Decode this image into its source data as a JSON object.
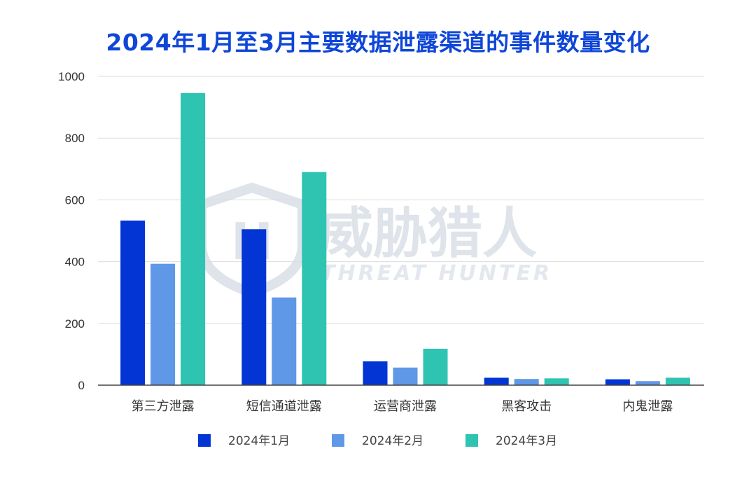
{
  "watermark": {
    "main": "威胁猎人",
    "sub": "THREAT HUNTER"
  },
  "chart_data": {
    "type": "bar",
    "title": "2024年1月至3月主要数据泄露渠道的事件数量变化",
    "categories": [
      "第三方泄露",
      "短信通道泄露",
      "运营商泄露",
      "黑客攻击",
      "内鬼泄露"
    ],
    "series": [
      {
        "name": "2024年1月",
        "color": "#0235d4",
        "values": [
          533,
          505,
          77,
          24,
          19
        ]
      },
      {
        "name": "2024年2月",
        "color": "#5f98e6",
        "values": [
          393,
          284,
          57,
          20,
          13
        ]
      },
      {
        "name": "2024年3月",
        "color": "#2ec4b1",
        "values": [
          946,
          690,
          118,
          22,
          24
        ]
      }
    ],
    "ylim": [
      0,
      1000
    ],
    "yticks": [
      0,
      200,
      400,
      600,
      800,
      1000
    ],
    "xlabel": "",
    "ylabel": "",
    "grid": true,
    "legend_position": "bottom"
  }
}
